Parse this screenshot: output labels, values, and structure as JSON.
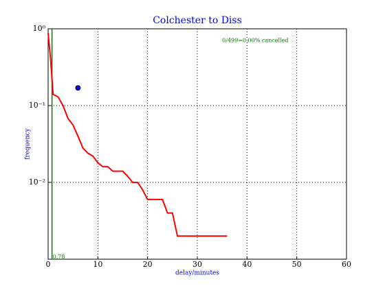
{
  "chart_data": {
    "type": "line",
    "title": "Colchester to Diss",
    "x_label": "delay/minutes",
    "y_label": "frequency",
    "x": [
      0,
      0.5,
      1,
      2,
      3,
      4,
      5,
      6,
      7,
      8,
      9,
      10,
      11,
      12,
      13,
      14,
      15,
      16,
      17,
      18,
      19,
      20,
      21,
      22,
      23,
      24,
      25,
      26,
      36
    ],
    "series": [
      {
        "color": "#ff0000",
        "values": [
          0.88,
          0.4,
          0.14,
          0.13,
          0.1,
          0.068,
          0.056,
          0.04,
          0.028,
          0.024,
          0.022,
          0.018,
          0.016,
          0.016,
          0.014,
          0.014,
          0.014,
          0.012,
          0.01,
          0.01,
          0.008,
          0.006,
          0.006,
          0.006,
          0.006,
          0.004,
          0.004,
          0.002,
          0.002
        ]
      }
    ],
    "xlim": [
      0,
      60
    ],
    "xticks": [
      0,
      10,
      20,
      30,
      40,
      50,
      60
    ],
    "ylim": [
      0.001,
      1
    ],
    "y_log": true,
    "yticks": [
      {
        "value": 1,
        "label": "10⁰"
      },
      {
        "value": 0.1,
        "label": "10⁻¹"
      },
      {
        "value": 0.01,
        "label": "10⁻²"
      }
    ],
    "grid": true,
    "vline": {
      "x": 0.78,
      "label": "0.78",
      "color": "#008000"
    },
    "point": {
      "x": 6,
      "y": 0.17,
      "color": "#0000ff"
    },
    "annotation": {
      "text": "0/499=0.00% cancelled",
      "x": 35,
      "y": 0.7,
      "color": "#008000"
    }
  }
}
